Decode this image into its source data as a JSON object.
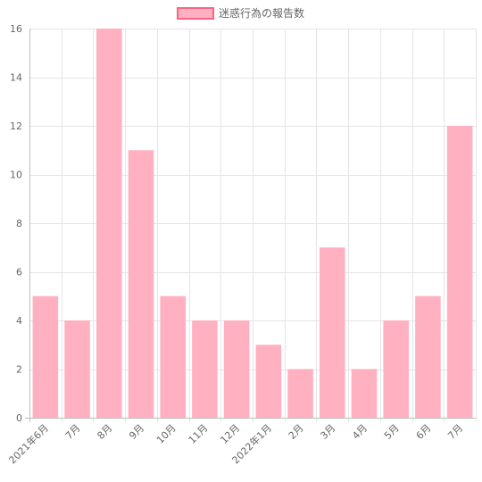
{
  "chart_data": {
    "type": "bar",
    "categories": [
      "2021年6月",
      "7月",
      "8月",
      "9月",
      "10月",
      "11月",
      "12月",
      "2022年1月",
      "2月",
      "3月",
      "4月",
      "5月",
      "6月",
      "7月"
    ],
    "series": [
      {
        "name": "迷惑行為の報告数",
        "values": [
          5,
          4,
          16,
          11,
          5,
          4,
          4,
          3,
          2,
          7,
          2,
          4,
          5,
          12
        ]
      }
    ],
    "ylim": [
      0,
      16
    ],
    "yticks": [
      0,
      2,
      4,
      6,
      8,
      10,
      12,
      14,
      16
    ],
    "grid": true,
    "legend": "top-center",
    "colors": {
      "bar_fill": "#ffb1c1",
      "bar_stroke": "#ff6384",
      "grid": "#e5e5e5",
      "axis": "#bdbdbd",
      "text": "#666666"
    }
  }
}
